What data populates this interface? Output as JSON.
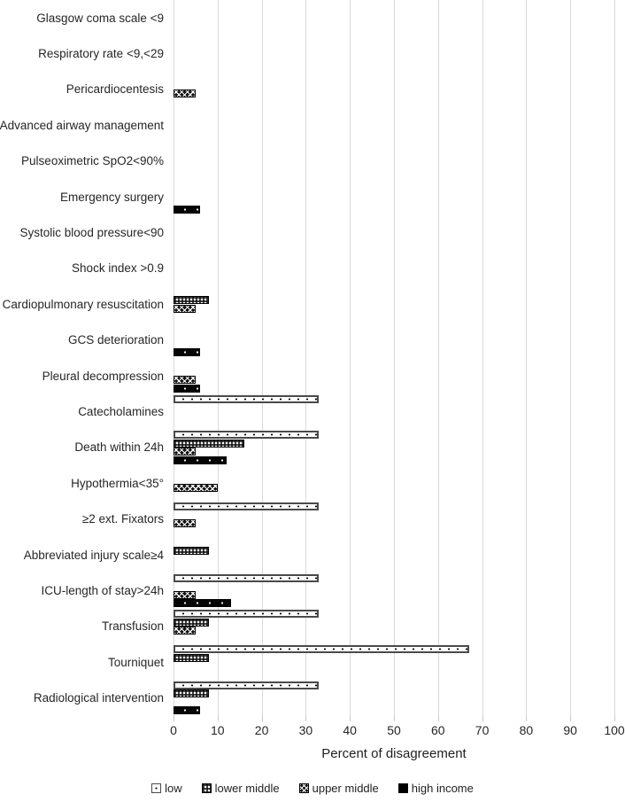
{
  "chart_data": {
    "type": "bar",
    "orientation": "horizontal",
    "title": "",
    "xlabel": "Percent of disagreement",
    "ylabel": "",
    "xlim": [
      0,
      100
    ],
    "xticks": [
      0,
      10,
      20,
      30,
      40,
      50,
      60,
      70,
      80,
      90,
      100
    ],
    "grid": true,
    "legend_position": "bottom",
    "categories": [
      "Glasgow coma scale <9",
      "Respiratory rate <9,<29",
      "Pericardiocentesis",
      "Advanced airway management",
      "Pulseoximetric SpO2<90%",
      "Emergency surgery",
      "Systolic blood pressure<90",
      "Shock index >0.9",
      "Cardiopulmonary resuscitation",
      "GCS deterioration",
      "Pleural decompression",
      "Catecholamines",
      "Death within 24h",
      "Hypothermia<35°",
      "≥2 ext. Fixators",
      "Abbreviated injury scale≥4",
      "ICU-length of stay>24h",
      "Transfusion",
      "Tourniquet",
      "Radiological intervention"
    ],
    "series": [
      {
        "name": "low",
        "pattern": "white-sparse-black-dots",
        "values": [
          null,
          null,
          null,
          null,
          null,
          null,
          null,
          null,
          null,
          null,
          null,
          33,
          33,
          null,
          33,
          null,
          33,
          33,
          67,
          33
        ]
      },
      {
        "name": "lower middle",
        "pattern": "black-dense-white-dot-grid",
        "values": [
          null,
          null,
          null,
          null,
          null,
          null,
          null,
          null,
          8,
          null,
          null,
          null,
          16,
          null,
          null,
          8,
          null,
          8,
          8,
          8
        ]
      },
      {
        "name": "upper middle",
        "pattern": "black-white-crosshatch",
        "values": [
          null,
          null,
          5,
          null,
          null,
          null,
          null,
          null,
          5,
          null,
          5,
          null,
          5,
          10,
          5,
          null,
          5,
          5,
          null,
          null
        ]
      },
      {
        "name": "high income",
        "pattern": "solid-black-sparse-white-dots",
        "values": [
          null,
          null,
          null,
          null,
          null,
          6,
          null,
          null,
          null,
          6,
          6,
          null,
          12,
          null,
          null,
          null,
          13,
          null,
          null,
          6
        ]
      }
    ]
  },
  "colors": {
    "gridline": "#d9d9d9",
    "text": "#262626",
    "bar_fill_dark": "#000000",
    "bar_fill_light": "#ffffff"
  },
  "axis": {
    "x_title": "Percent of disagreement"
  },
  "legend": {
    "labels": [
      "low",
      "lower middle",
      "upper middle",
      "high income"
    ]
  }
}
